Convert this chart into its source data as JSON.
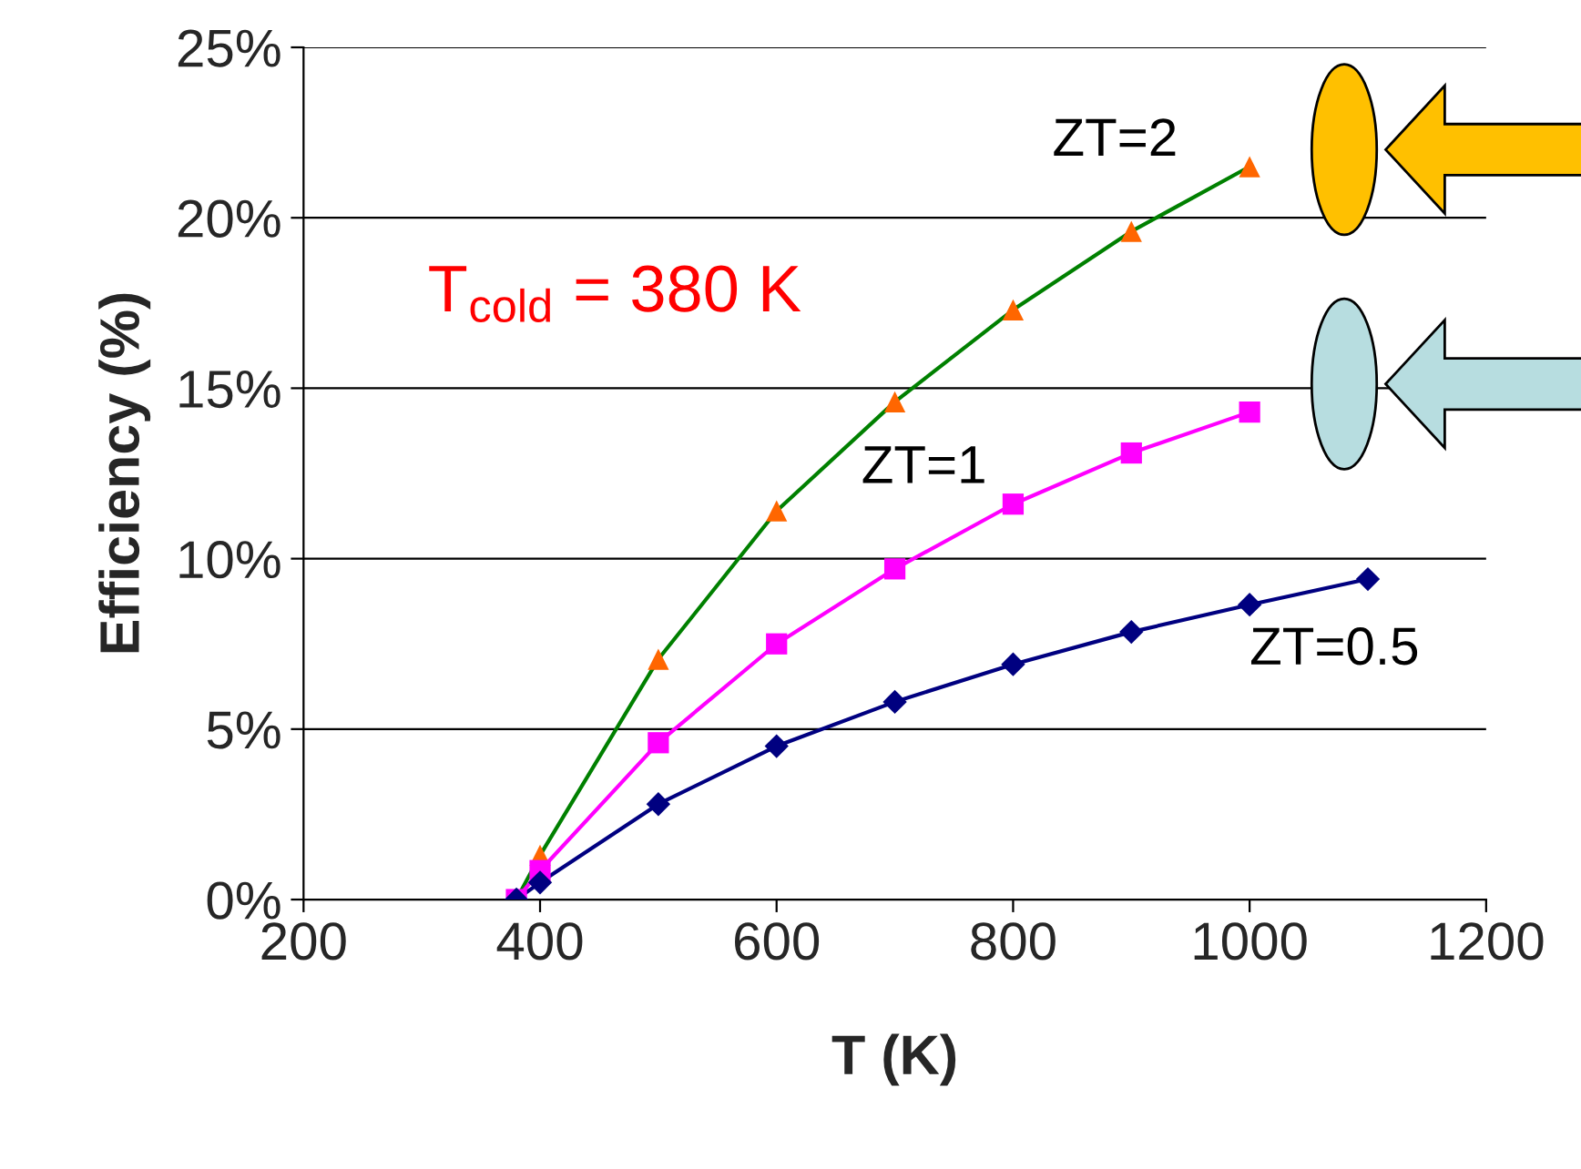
{
  "chart_data": {
    "type": "line",
    "xlabel": "T (K)",
    "ylabel": "Efficiency (%)",
    "x": [
      380,
      400,
      500,
      600,
      700,
      800,
      900,
      1000,
      1100
    ],
    "series": [
      {
        "name": "ZT=2",
        "color": "#008000",
        "colors": [
          "#ff6600",
          "#ff6600",
          "#ff6600",
          "#ff6600",
          "#ff6600",
          "#ff6600",
          "#ff6600",
          "#ff6600",
          "#ff6600"
        ],
        "marker": "triangle",
        "values": [
          0,
          1.3,
          7.05,
          11.4,
          14.6,
          17.3,
          19.6,
          21.5,
          null
        ]
      },
      {
        "name": "ZT=1",
        "color": "#ff00ff",
        "marker": "square",
        "values": [
          0,
          0.85,
          4.6,
          7.5,
          9.7,
          11.6,
          13.1,
          14.3,
          null
        ]
      },
      {
        "name": "ZT=0.5",
        "color": "#000080",
        "marker": "diamond",
        "values": [
          0,
          0.5,
          2.8,
          4.5,
          5.8,
          6.9,
          7.85,
          8.65,
          9.4
        ]
      }
    ],
    "xlim": [
      200,
      1200
    ],
    "xticks": [
      200,
      400,
      600,
      800,
      1000,
      1200
    ],
    "ylim": [
      0,
      25
    ],
    "yticks": [
      {
        "value": 0,
        "label": "0%"
      },
      {
        "value": 5,
        "label": "5%"
      },
      {
        "value": 10,
        "label": "10%"
      },
      {
        "value": 15,
        "label": "15%"
      },
      {
        "value": 20,
        "label": "20%"
      },
      {
        "value": 25,
        "label": "25%"
      }
    ],
    "grid": "y",
    "legend": false,
    "annotations": [
      "T$_{cold}$ = 380 K"
    ]
  }
}
